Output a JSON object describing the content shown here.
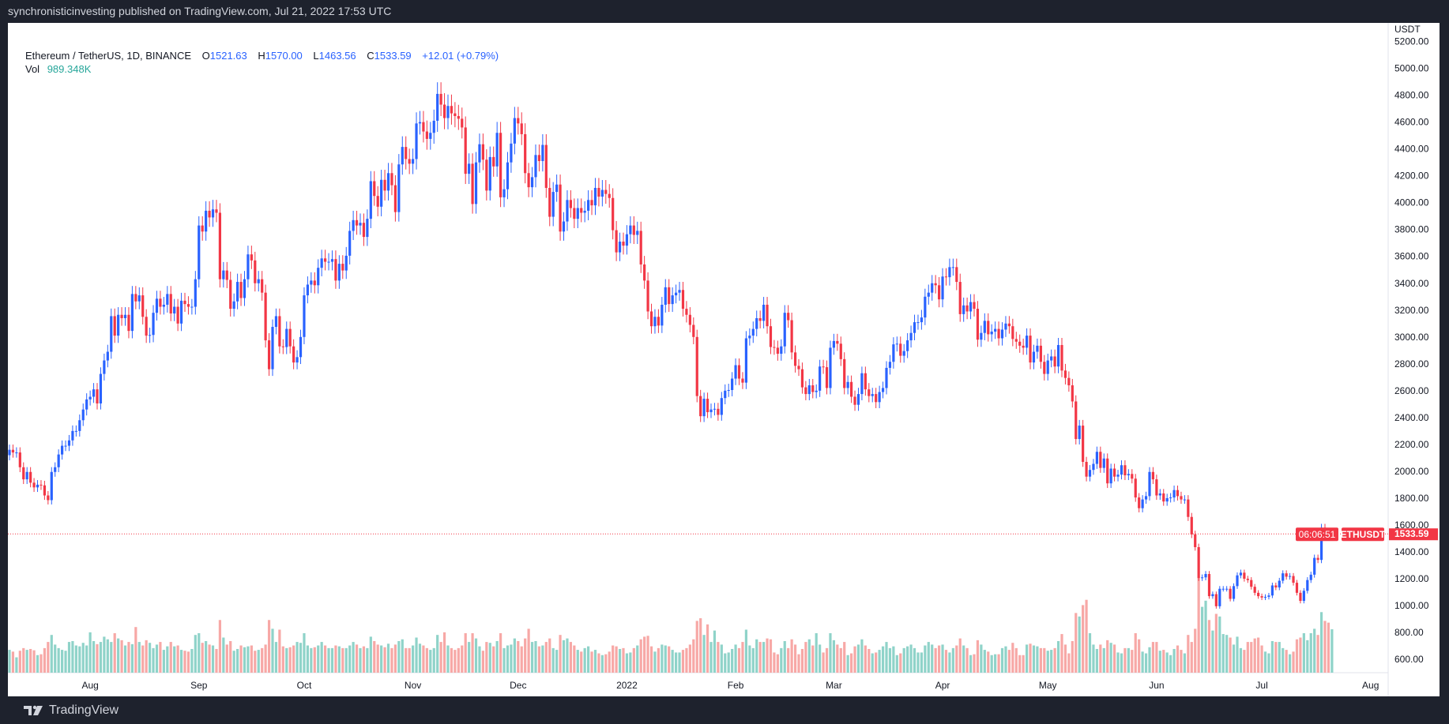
{
  "header": {
    "published": "synchronisticinvesting published on TradingView.com, Jul 21, 2022 17:53 UTC"
  },
  "legend": {
    "symbol": "Ethereum / TetherUS, 1D, BINANCE",
    "o_label": "O",
    "o": "1521.63",
    "h_label": "H",
    "h": "1570.00",
    "l_label": "L",
    "l": "1463.56",
    "c_label": "C",
    "c": "1533.59",
    "change": "+12.01 (+0.79%)",
    "vol_label": "Vol",
    "vol": "989.348K"
  },
  "price_label": {
    "ticker": "ETHUSDT",
    "price": "1533.59",
    "countdown": "06:06:51"
  },
  "footer": {
    "brand": "TradingView"
  },
  "colors": {
    "up": "#2962ff",
    "down": "#f23645",
    "vol_up": "#8fd3c9",
    "vol_down": "#f7a8a6",
    "bg_dark": "#1e222d"
  },
  "chart_data": {
    "type": "candlestick",
    "title": "Ethereum / TetherUS, 1D, BINANCE",
    "start_date": "2021-07-09",
    "end_date": "2022-07-21",
    "ylabel": "USDT",
    "ylim": [
      500,
      5200
    ],
    "y_ticks": [
      "600.00",
      "800.00",
      "1000.00",
      "1200.00",
      "1400.00",
      "1600.00",
      "1800.00",
      "2000.00",
      "2200.00",
      "2400.00",
      "2600.00",
      "2800.00",
      "3000.00",
      "3200.00",
      "3400.00",
      "3600.00",
      "3800.00",
      "4000.00",
      "4200.00",
      "4400.00",
      "4600.00",
      "4800.00",
      "5000.00",
      "5200.00"
    ],
    "x_ticks": [
      {
        "label": "Aug",
        "day": 23
      },
      {
        "label": "Sep",
        "day": 54
      },
      {
        "label": "Oct",
        "day": 84
      },
      {
        "label": "Nov",
        "day": 115
      },
      {
        "label": "Dec",
        "day": 145
      },
      {
        "label": "2022",
        "day": 176
      },
      {
        "label": "Feb",
        "day": 207
      },
      {
        "label": "Mar",
        "day": 235
      },
      {
        "label": "Apr",
        "day": 266
      },
      {
        "label": "May",
        "day": 296
      },
      {
        "label": "Jun",
        "day": 327
      },
      {
        "label": "Jul",
        "day": 357
      },
      {
        "label": "Aug",
        "day": 388
      }
    ],
    "first_open": 2120,
    "close": [
      2160,
      2140,
      2140,
      2030,
      1940,
      1995,
      1915,
      1880,
      1900,
      1895,
      1820,
      1785,
      1995,
      2030,
      2125,
      2190,
      2190,
      2230,
      2300,
      2300,
      2380,
      2460,
      2535,
      2555,
      2610,
      2505,
      2725,
      2825,
      2890,
      3155,
      3010,
      3165,
      3140,
      3165,
      3045,
      3320,
      3265,
      3310,
      3150,
      3010,
      3015,
      3180,
      3285,
      3225,
      3240,
      3320,
      3175,
      3225,
      3100,
      3270,
      3245,
      3225,
      3225,
      3430,
      3830,
      3785,
      3940,
      3890,
      3950,
      3925,
      3430,
      3495,
      3425,
      3210,
      3265,
      3410,
      3290,
      3430,
      3615,
      3570,
      3400,
      3430,
      3330,
      2975,
      2760,
      3075,
      3155,
      2930,
      2925,
      3060,
      2930,
      2810,
      2850,
      3000,
      3310,
      3390,
      3420,
      3385,
      3515,
      3585,
      3560,
      3560,
      3580,
      3420,
      3545,
      3495,
      3605,
      3790,
      3870,
      3830,
      3850,
      3745,
      3880,
      4160,
      4050,
      3970,
      4170,
      4090,
      4220,
      4130,
      3930,
      4285,
      4415,
      4325,
      4290,
      4325,
      4590,
      4600,
      4530,
      4475,
      4520,
      4610,
      4810,
      4730,
      4630,
      4720,
      4665,
      4645,
      4625,
      4560,
      4215,
      4290,
      3990,
      4300,
      4435,
      4320,
      4090,
      4340,
      4270,
      4520,
      4040,
      4100,
      4300,
      4440,
      4630,
      4590,
      4510,
      4220,
      4115,
      4190,
      4355,
      4310,
      4430,
      4110,
      3895,
      4080,
      4135,
      3785,
      3860,
      4020,
      3960,
      3880,
      3960,
      3925,
      3940,
      4020,
      3980,
      4110,
      4045,
      4095,
      4065,
      4035,
      3795,
      3630,
      3710,
      3680,
      3765,
      3830,
      3760,
      3790,
      3540,
      3420,
      3190,
      3080,
      3150,
      3085,
      3240,
      3370,
      3245,
      3310,
      3330,
      3350,
      3210,
      3165,
      3090,
      3000,
      2560,
      2410,
      2540,
      2440,
      2460,
      2465,
      2420,
      2545,
      2600,
      2605,
      2690,
      2790,
      2690,
      2660,
      2990,
      3010,
      3060,
      3140,
      3120,
      3240,
      3080,
      2925,
      2920,
      2875,
      2930,
      3180,
      3125,
      2885,
      2785,
      2760,
      2625,
      2575,
      2640,
      2590,
      2600,
      2780,
      2775,
      2620,
      2920,
      2970,
      2950,
      2835,
      2620,
      2665,
      2555,
      2495,
      2575,
      2730,
      2610,
      2560,
      2575,
      2515,
      2590,
      2620,
      2770,
      2815,
      2945,
      2950,
      2860,
      2895,
      2975,
      3030,
      3110,
      3110,
      3145,
      3300,
      3330,
      3400,
      3385,
      3280,
      3450,
      3445,
      3520,
      3520,
      3410,
      3170,
      3235,
      3190,
      3260,
      3210,
      2980,
      3030,
      3120,
      3020,
      3040,
      3060,
      2990,
      3055,
      3100,
      3080,
      2985,
      2965,
      2935,
      2920,
      3010,
      2810,
      2890,
      2935,
      2815,
      2725,
      2825,
      2855,
      2780,
      2940,
      2750,
      2695,
      2640,
      2520,
      2240,
      2340,
      2070,
      1960,
      2010,
      2055,
      2145,
      2025,
      2095,
      1910,
      2020,
      1960,
      1975,
      2045,
      1970,
      1980,
      1945,
      1805,
      1725,
      1790,
      1815,
      1995,
      1940,
      1820,
      1835,
      1775,
      1800,
      1805,
      1860,
      1815,
      1790,
      1790,
      1660,
      1530,
      1435,
      1205,
      1210,
      1235,
      1070,
      1085,
      995,
      1125,
      1125,
      1125,
      1050,
      1145,
      1225,
      1245,
      1200,
      1190,
      1140,
      1095,
      1070,
      1060,
      1065,
      1075,
      1150,
      1135,
      1185,
      1240,
      1215,
      1220,
      1170,
      1095,
      1035,
      1110,
      1190,
      1230,
      1355,
      1340,
      1580,
      1545,
      1521.63,
      1533.59
    ],
    "volume_k": [
      520,
      480,
      350,
      500,
      560,
      520,
      540,
      510,
      400,
      420,
      560,
      700,
      860,
      640,
      560,
      520,
      500,
      700,
      720,
      620,
      600,
      680,
      620,
      920,
      720,
      650,
      700,
      820,
      760,
      700,
      900,
      780,
      740,
      620,
      700,
      650,
      1040,
      700,
      620,
      740,
      680,
      560,
      640,
      700,
      520,
      600,
      700,
      600,
      620,
      520,
      500,
      480,
      540,
      860,
      900,
      680,
      720,
      640,
      620,
      540,
      1200,
      800,
      640,
      720,
      500,
      540,
      620,
      580,
      600,
      620,
      500,
      520,
      560,
      640,
      1200,
      1000,
      700,
      980,
      600,
      560,
      580,
      620,
      700,
      680,
      900,
      620,
      560,
      580,
      620,
      700,
      620,
      560,
      560,
      620,
      600,
      560,
      560,
      620,
      700,
      640,
      560,
      600,
      560,
      820,
      720,
      640,
      620,
      580,
      660,
      560,
      640,
      720,
      760,
      560,
      560,
      620,
      800,
      660,
      620,
      560,
      520,
      560,
      860,
      700,
      920,
      620,
      560,
      520,
      560,
      620,
      900,
      700,
      900,
      780,
      600,
      500,
      700,
      680,
      600,
      720,
      900,
      560,
      620,
      640,
      780,
      720,
      600,
      780,
      1000,
      700,
      720,
      600,
      620,
      700,
      780,
      560,
      520,
      860,
      740,
      780,
      700,
      620,
      520,
      480,
      560,
      600,
      480,
      520,
      440,
      400,
      420,
      480,
      620,
      600,
      540,
      560,
      440,
      460,
      560,
      620,
      760,
      820,
      840,
      600,
      480,
      560,
      640,
      620,
      600,
      520,
      460,
      460,
      520,
      560,
      640,
      760,
      1180,
      1240,
      860,
      1100,
      700,
      960,
      700,
      640,
      440,
      460,
      540,
      640,
      560,
      700,
      980,
      620,
      560,
      760,
      700,
      700,
      780,
      760,
      460,
      420,
      560,
      720,
      560,
      760,
      640,
      420,
      540,
      700,
      760,
      620,
      900,
      640,
      460,
      560,
      900,
      740,
      640,
      560,
      700,
      400,
      440,
      600,
      640,
      760,
      620,
      540,
      440,
      460,
      520,
      600,
      700,
      560,
      600,
      400,
      440,
      560,
      600,
      640,
      560,
      460,
      460,
      620,
      700,
      640,
      560,
      620,
      640,
      520,
      460,
      560,
      620,
      780,
      620,
      560,
      400,
      420,
      740,
      640,
      520,
      480,
      400,
      420,
      420,
      560,
      600,
      520,
      680,
      560,
      400,
      400,
      640,
      660,
      620,
      600,
      560,
      560,
      500,
      520,
      560,
      720,
      880,
      640,
      440,
      720,
      1360,
      1280,
      1540,
      1660,
      900,
      640,
      540,
      640,
      560,
      740,
      680,
      640,
      460,
      440,
      560,
      560,
      520,
      900,
      760,
      480,
      440,
      580,
      700,
      700,
      500,
      520,
      460,
      400,
      540,
      620,
      520,
      440,
      860,
      700,
      1000,
      2160,
      1500,
      1640,
      1200,
      960,
      1340,
      1280,
      880,
      860,
      800,
      640,
      820,
      560,
      520,
      700,
      700,
      780,
      800,
      620,
      480,
      440,
      720,
      700,
      700,
      560,
      520,
      420,
      480,
      760,
      800,
      900,
      740,
      900,
      1000,
      860,
      1380,
      1180,
      1140,
      989.348
    ],
    "last_price": 1533.59,
    "grid": false
  }
}
